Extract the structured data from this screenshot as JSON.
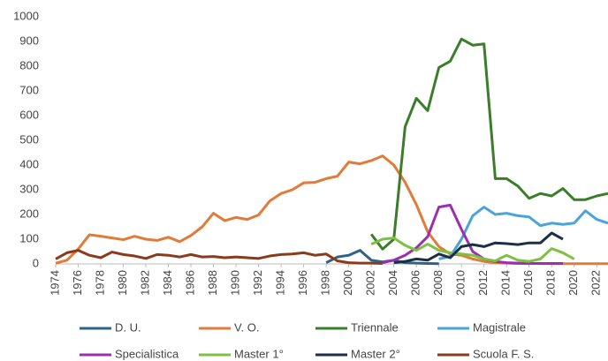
{
  "chart_data": {
    "type": "line",
    "x": [
      1974,
      1975,
      1976,
      1977,
      1978,
      1979,
      1980,
      1981,
      1982,
      1983,
      1984,
      1985,
      1986,
      1987,
      1988,
      1989,
      1990,
      1991,
      1992,
      1993,
      1994,
      1995,
      1996,
      1997,
      1998,
      1999,
      2000,
      2001,
      2002,
      2003,
      2004,
      2005,
      2006,
      2007,
      2008,
      2009,
      2010,
      2011,
      2012,
      2013,
      2014,
      2015,
      2016,
      2017,
      2018,
      2019,
      2020,
      2021,
      2022,
      2023
    ],
    "xlim": [
      1974,
      2023
    ],
    "xticks": [
      1974,
      1976,
      1978,
      1980,
      1982,
      1984,
      1986,
      1988,
      1990,
      1992,
      1994,
      1996,
      1998,
      2000,
      2002,
      2004,
      2006,
      2008,
      2010,
      2012,
      2014,
      2016,
      2018,
      2020,
      2022
    ],
    "ylim": [
      0,
      1000
    ],
    "yticks": [
      0,
      100,
      200,
      300,
      400,
      500,
      600,
      700,
      800,
      900,
      1000
    ],
    "grid": false,
    "legend": "bottom",
    "series": [
      {
        "name": "D. U.",
        "color": "#2e6385",
        "values": [
          null,
          null,
          null,
          null,
          null,
          null,
          null,
          null,
          null,
          null,
          null,
          null,
          null,
          null,
          null,
          null,
          null,
          null,
          null,
          null,
          null,
          null,
          null,
          null,
          5,
          28,
          35,
          55,
          15,
          8,
          15,
          5,
          3,
          2,
          1,
          null,
          null,
          null,
          null,
          null,
          null,
          null,
          null,
          null,
          null,
          null,
          null,
          null,
          null,
          null
        ]
      },
      {
        "name": "V. O.",
        "color": "#e07b39",
        "values": [
          3,
          15,
          60,
          118,
          112,
          105,
          98,
          112,
          100,
          95,
          108,
          90,
          115,
          150,
          205,
          175,
          188,
          180,
          198,
          255,
          285,
          300,
          328,
          330,
          345,
          355,
          412,
          405,
          418,
          437,
          400,
          330,
          240,
          130,
          70,
          40,
          35,
          20,
          10,
          5,
          3,
          2,
          2,
          2,
          1,
          1,
          1,
          1,
          1,
          1
        ]
      },
      {
        "name": "Triennale",
        "color": "#3b7d2a",
        "values": [
          null,
          null,
          null,
          null,
          null,
          null,
          null,
          null,
          null,
          null,
          null,
          null,
          null,
          null,
          null,
          null,
          null,
          null,
          null,
          null,
          null,
          null,
          null,
          null,
          null,
          null,
          null,
          null,
          120,
          60,
          100,
          555,
          670,
          620,
          795,
          820,
          910,
          885,
          890,
          345,
          345,
          315,
          265,
          285,
          275,
          305,
          260,
          260,
          275,
          285
        ]
      },
      {
        "name": "Magistrale",
        "color": "#4ba3d9",
        "values": [
          null,
          null,
          null,
          null,
          null,
          null,
          null,
          null,
          null,
          null,
          null,
          null,
          null,
          null,
          null,
          null,
          null,
          null,
          null,
          null,
          null,
          null,
          null,
          null,
          null,
          null,
          null,
          null,
          null,
          null,
          null,
          null,
          null,
          null,
          20,
          30,
          100,
          195,
          230,
          200,
          205,
          195,
          190,
          155,
          165,
          160,
          165,
          215,
          180,
          165
        ]
      },
      {
        "name": "Specialistica",
        "color": "#9b2fae",
        "values": [
          null,
          null,
          null,
          null,
          null,
          null,
          null,
          null,
          null,
          null,
          null,
          null,
          null,
          null,
          null,
          null,
          null,
          null,
          null,
          null,
          null,
          null,
          null,
          null,
          null,
          null,
          null,
          null,
          null,
          5,
          15,
          35,
          65,
          110,
          230,
          238,
          140,
          50,
          20,
          10,
          5,
          3,
          2,
          2,
          2,
          2,
          null,
          null,
          null,
          null
        ]
      },
      {
        "name": "Master 1°",
        "color": "#7cc142",
        "values": [
          null,
          null,
          null,
          null,
          null,
          null,
          null,
          null,
          null,
          null,
          null,
          null,
          null,
          null,
          null,
          null,
          null,
          null,
          null,
          null,
          null,
          null,
          null,
          null,
          null,
          null,
          null,
          null,
          80,
          100,
          105,
          75,
          55,
          80,
          55,
          45,
          40,
          35,
          20,
          12,
          35,
          15,
          10,
          20,
          62,
          45,
          20,
          null,
          null,
          null
        ]
      },
      {
        "name": "Master 2°",
        "color": "#1b2f47",
        "values": [
          null,
          null,
          null,
          null,
          null,
          null,
          null,
          null,
          null,
          null,
          null,
          null,
          null,
          null,
          null,
          null,
          null,
          null,
          null,
          null,
          null,
          null,
          null,
          null,
          null,
          null,
          null,
          null,
          null,
          null,
          5,
          10,
          20,
          15,
          40,
          25,
          70,
          78,
          70,
          85,
          82,
          78,
          85,
          85,
          125,
          100,
          null,
          null,
          null,
          null
        ]
      },
      {
        "name": "Scuola F. S.",
        "color": "#8a3b1c",
        "values": [
          20,
          45,
          55,
          35,
          25,
          48,
          38,
          32,
          22,
          38,
          35,
          28,
          38,
          28,
          30,
          25,
          28,
          25,
          22,
          32,
          38,
          40,
          45,
          35,
          40,
          12,
          5,
          3,
          3,
          2,
          null,
          null,
          null,
          null,
          null,
          null,
          null,
          null,
          null,
          null,
          null,
          null,
          null,
          null,
          null,
          null,
          null,
          null,
          null,
          null
        ]
      }
    ]
  }
}
